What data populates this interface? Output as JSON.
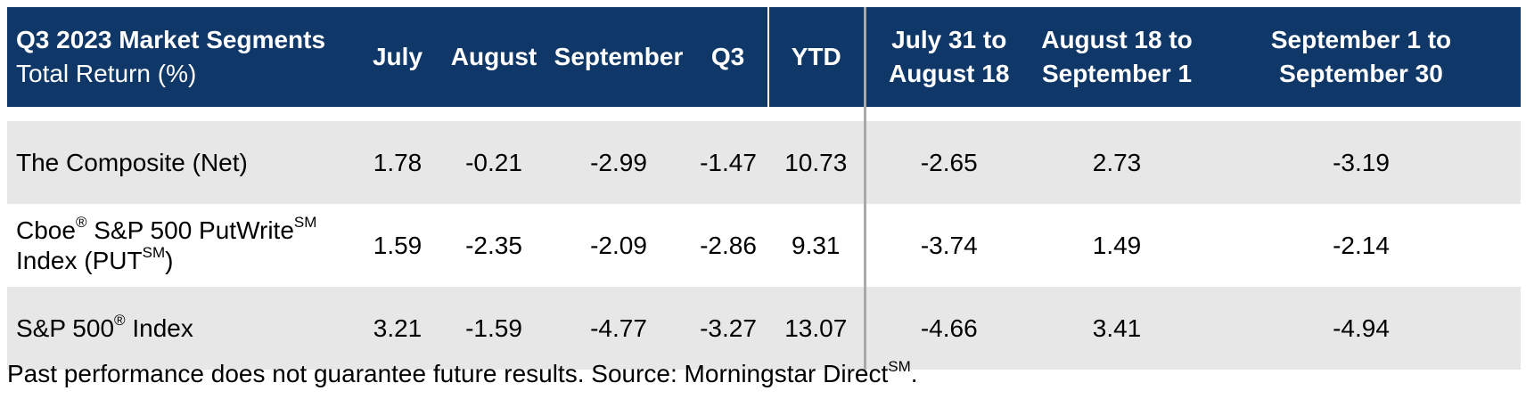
{
  "chart_data": {
    "type": "table",
    "header": {
      "title": "Q3 2023 Market Segments",
      "subtitle": "Total Return (%)",
      "columns": [
        "July",
        "August",
        "September",
        "Q3",
        "YTD"
      ],
      "periods": [
        {
          "line1": "July 31 to",
          "line2": "August 18"
        },
        {
          "line1": "August 18 to",
          "line2": "September 1"
        },
        {
          "line1": "September 1 to",
          "line2": "September 30"
        }
      ]
    },
    "rows": [
      {
        "name_parts": [
          "The Composite (Net)"
        ],
        "values": [
          "1.78",
          "-0.21",
          "-2.99",
          "-1.47",
          "10.73",
          "-2.65",
          "2.73",
          "-3.19"
        ]
      },
      {
        "name_line1": {
          "a": "Cboe",
          "a_sup": "®",
          "b": " S&P 500 PutWrite",
          "b_sup": "SM"
        },
        "name_line2": {
          "a": "Index (PUT",
          "a_sup": "SM",
          "b": ")"
        },
        "values": [
          "1.59",
          "-2.35",
          "-2.09",
          "-2.86",
          "9.31",
          "-3.74",
          "1.49",
          "-2.14"
        ]
      },
      {
        "name_parts": [
          "S&P 500",
          "®",
          " Index"
        ],
        "values": [
          "3.21",
          "-1.59",
          "-4.77",
          "-3.27",
          "13.07",
          "-4.66",
          "3.41",
          "-4.94"
        ]
      }
    ],
    "footnote": {
      "text": "Past performance does not guarantee future results. Source: Morningstar Direct",
      "sup": "SM",
      "end": "."
    },
    "colors": {
      "header_bg": "#0f3768",
      "header_text": "#ffffff",
      "stripe": "#e7e7e8",
      "divider": "#a9a9a9"
    }
  }
}
